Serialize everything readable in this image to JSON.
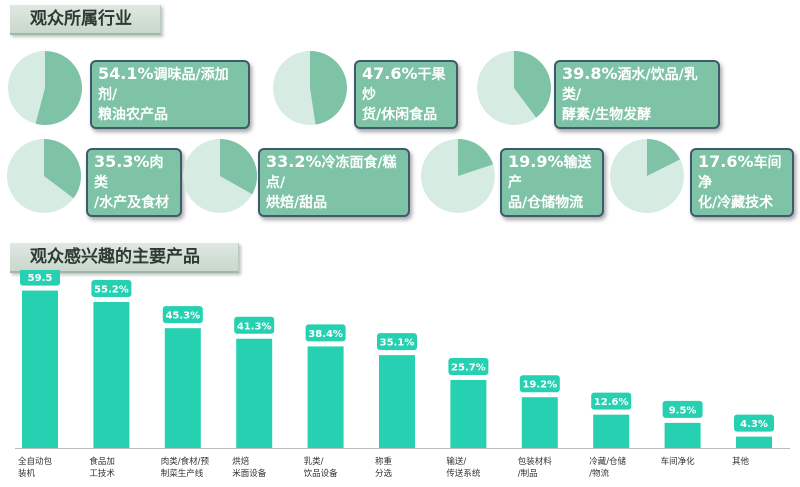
{
  "section1_title": "观众所属行业",
  "section2_title": "观众感兴趣的主要产品",
  "colors": {
    "accent": "#7ec3a6",
    "pie_bg": "#d6ece2",
    "bar": "#26d1b1",
    "label_border": "#3f5b6b"
  },
  "chart_data": [
    {
      "type": "pie",
      "slices": [
        {
          "pct_text": "54.1%",
          "label": "调味品/添加剂/\n粮油农产品",
          "value": 54.1
        },
        {
          "pct_text": "47.6%",
          "label": "干果炒\n货/休闲食品",
          "value": 47.6
        },
        {
          "pct_text": "39.8%",
          "label": "酒水/饮品/乳类/\n酵素/生物发酵",
          "value": 39.8
        },
        {
          "pct_text": "35.3%",
          "label": "肉类\n/水产及食材",
          "value": 35.3
        },
        {
          "pct_text": "33.2%",
          "label": "冷冻面食/糕点/\n烘焙/甜品",
          "value": 33.2
        },
        {
          "pct_text": "19.9%",
          "label": "输送产\n品/仓储物流",
          "value": 19.9
        },
        {
          "pct_text": "17.6%",
          "label": "车间净\n化/冷藏技术",
          "value": 17.6
        }
      ]
    },
    {
      "type": "bar",
      "categories": [
        "全自动包\n装机",
        "食品加\n工技术",
        "肉类/食材/预\n制菜生产线",
        "烘焙\n米面设备",
        "乳类/\n饮品设备",
        "称重\n分选",
        "输送/\n传送系统",
        "包装材料\n/制品",
        "冷藏/仓储\n/物流",
        "车间净化",
        "其他"
      ],
      "values": [
        59.5,
        55.2,
        45.3,
        41.3,
        38.4,
        35.1,
        25.7,
        19.2,
        12.6,
        9.5,
        4.3
      ],
      "value_labels": [
        "59.5",
        "55.2%",
        "45.3%",
        "41.3%",
        "38.4%",
        "35.1%",
        "25.7%",
        "19.2%",
        "12.6%",
        "9.5%",
        "4.3%"
      ],
      "ylim": [
        0,
        62
      ]
    }
  ]
}
